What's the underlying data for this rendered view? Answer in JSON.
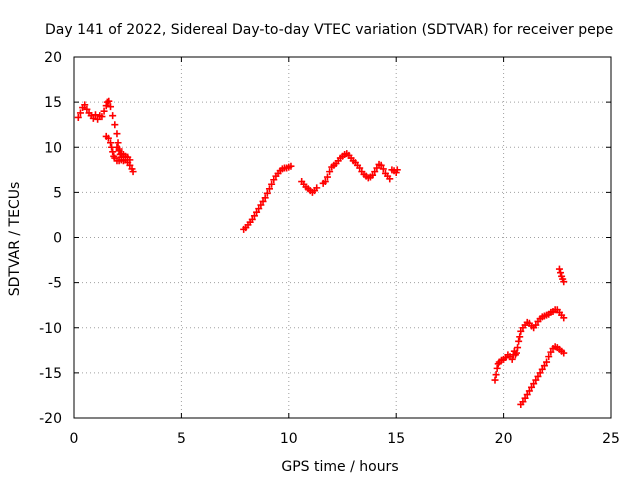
{
  "chart_data": {
    "type": "scatter",
    "title": "Day 141 of 2022, Sidereal Day-to-day VTEC variation (SDTVAR) for receiver pepe",
    "xlabel": "GPS time / hours",
    "ylabel": "SDTVAR / TECUs",
    "xlim": [
      0,
      25
    ],
    "ylim": [
      -20,
      20
    ],
    "xticks": [
      "0",
      "5",
      "10",
      "15",
      "20",
      "25"
    ],
    "yticks": [
      "20",
      "15",
      "10",
      "5",
      "0",
      "-5",
      "-10",
      "-15",
      "-20"
    ],
    "grid": true,
    "legend": "none",
    "marker": "plus",
    "color": "#ff0000",
    "segments": [
      [
        [
          0.2,
          13.3
        ],
        [
          0.3,
          13.8
        ],
        [
          0.4,
          14.4
        ],
        [
          0.5,
          14.7
        ],
        [
          0.6,
          14.2
        ],
        [
          0.7,
          13.8
        ],
        [
          0.8,
          13.5
        ],
        [
          0.9,
          13.2
        ],
        [
          1.0,
          13.6
        ],
        [
          1.1,
          13.1
        ],
        [
          1.2,
          13.5
        ],
        [
          1.3,
          13.4
        ],
        [
          1.4,
          14.0
        ],
        [
          1.5,
          14.6
        ],
        [
          1.55,
          15.0
        ],
        [
          1.62,
          15.1
        ],
        [
          1.7,
          14.5
        ],
        [
          1.8,
          13.5
        ],
        [
          1.9,
          12.5
        ],
        [
          2.0,
          11.5
        ],
        [
          2.05,
          10.5
        ],
        [
          2.1,
          9.8
        ],
        [
          2.15,
          9.2
        ],
        [
          2.2,
          8.9
        ]
      ],
      [
        [
          1.5,
          11.2
        ],
        [
          1.6,
          11.0
        ],
        [
          1.7,
          10.5
        ],
        [
          1.75,
          10.0
        ],
        [
          1.8,
          9.5
        ],
        [
          1.85,
          9.0
        ],
        [
          1.9,
          8.8
        ],
        [
          2.0,
          8.5
        ],
        [
          2.1,
          8.5
        ],
        [
          2.2,
          8.6
        ],
        [
          2.3,
          8.5
        ],
        [
          2.4,
          8.6
        ],
        [
          2.5,
          8.3
        ],
        [
          2.6,
          8.0
        ],
        [
          2.7,
          7.6
        ],
        [
          2.75,
          7.3
        ]
      ],
      [
        [
          2.0,
          10.0
        ],
        [
          2.1,
          9.6
        ],
        [
          2.2,
          9.3
        ],
        [
          2.3,
          9.2
        ],
        [
          2.4,
          9.0
        ],
        [
          2.5,
          8.9
        ],
        [
          2.6,
          8.6
        ]
      ],
      [
        [
          7.9,
          0.9
        ],
        [
          8.0,
          1.1
        ],
        [
          8.1,
          1.4
        ],
        [
          8.2,
          1.7
        ],
        [
          8.3,
          2.0
        ],
        [
          8.4,
          2.4
        ],
        [
          8.5,
          2.8
        ],
        [
          8.6,
          3.2
        ],
        [
          8.7,
          3.6
        ],
        [
          8.8,
          4.0
        ],
        [
          8.9,
          4.4
        ],
        [
          9.0,
          4.9
        ],
        [
          9.1,
          5.4
        ],
        [
          9.2,
          5.9
        ],
        [
          9.3,
          6.4
        ],
        [
          9.4,
          6.8
        ],
        [
          9.5,
          7.1
        ],
        [
          9.6,
          7.4
        ],
        [
          9.7,
          7.6
        ],
        [
          9.8,
          7.7
        ],
        [
          9.9,
          7.7
        ],
        [
          10.0,
          7.8
        ],
        [
          10.1,
          7.9
        ]
      ],
      [
        [
          10.6,
          6.2
        ],
        [
          10.7,
          5.9
        ],
        [
          10.8,
          5.6
        ],
        [
          10.9,
          5.4
        ],
        [
          11.0,
          5.2
        ],
        [
          11.1,
          5.0
        ],
        [
          11.2,
          5.2
        ],
        [
          11.3,
          5.5
        ]
      ],
      [
        [
          11.6,
          6.0
        ],
        [
          11.7,
          6.2
        ],
        [
          11.8,
          6.7
        ],
        [
          11.9,
          7.3
        ],
        [
          12.0,
          7.8
        ],
        [
          12.1,
          8.0
        ],
        [
          12.2,
          8.2
        ],
        [
          12.3,
          8.5
        ],
        [
          12.4,
          8.8
        ],
        [
          12.5,
          9.0
        ],
        [
          12.6,
          9.2
        ],
        [
          12.7,
          9.3
        ],
        [
          12.8,
          9.1
        ],
        [
          12.9,
          8.8
        ],
        [
          13.0,
          8.5
        ],
        [
          13.1,
          8.3
        ],
        [
          13.2,
          8.0
        ],
        [
          13.3,
          7.7
        ],
        [
          13.4,
          7.3
        ],
        [
          13.5,
          7.0
        ],
        [
          13.6,
          6.8
        ],
        [
          13.7,
          6.6
        ],
        [
          13.8,
          6.7
        ],
        [
          13.9,
          6.9
        ],
        [
          14.0,
          7.3
        ],
        [
          14.1,
          7.7
        ],
        [
          14.2,
          8.1
        ],
        [
          14.3,
          8.0
        ],
        [
          14.4,
          7.6
        ],
        [
          14.5,
          7.1
        ],
        [
          14.6,
          6.8
        ],
        [
          14.7,
          6.5
        ]
      ],
      [
        [
          14.8,
          7.5
        ],
        [
          14.9,
          7.4
        ],
        [
          15.0,
          7.2
        ],
        [
          15.05,
          7.5
        ]
      ],
      [
        [
          19.6,
          -15.8
        ],
        [
          19.65,
          -15.2
        ],
        [
          19.7,
          -14.5
        ],
        [
          19.75,
          -14.0
        ],
        [
          19.8,
          -13.8
        ],
        [
          19.9,
          -13.6
        ],
        [
          20.0,
          -13.5
        ],
        [
          20.1,
          -13.3
        ],
        [
          20.2,
          -13.0
        ],
        [
          20.3,
          -13.2
        ],
        [
          20.4,
          -13.5
        ],
        [
          20.45,
          -13.0
        ],
        [
          20.5,
          -12.6
        ],
        [
          20.55,
          -13.0
        ],
        [
          20.6,
          -12.8
        ],
        [
          20.65,
          -12.2
        ],
        [
          20.7,
          -11.5
        ],
        [
          20.75,
          -11.0
        ],
        [
          20.8,
          -10.4
        ],
        [
          20.9,
          -10.0
        ],
        [
          21.0,
          -9.7
        ],
        [
          21.1,
          -9.4
        ],
        [
          21.2,
          -9.5
        ],
        [
          21.3,
          -9.8
        ],
        [
          21.4,
          -10.0
        ],
        [
          21.5,
          -9.7
        ],
        [
          21.6,
          -9.3
        ],
        [
          21.7,
          -9.0
        ],
        [
          21.8,
          -8.8
        ],
        [
          21.9,
          -8.7
        ],
        [
          22.0,
          -8.6
        ],
        [
          22.1,
          -8.5
        ],
        [
          22.2,
          -8.3
        ],
        [
          22.3,
          -8.2
        ],
        [
          22.4,
          -8.0
        ],
        [
          22.5,
          -8.0
        ],
        [
          22.6,
          -8.3
        ],
        [
          22.7,
          -8.6
        ],
        [
          22.8,
          -8.9
        ]
      ],
      [
        [
          20.8,
          -18.5
        ],
        [
          20.9,
          -18.2
        ],
        [
          21.0,
          -17.8
        ],
        [
          21.1,
          -17.4
        ],
        [
          21.2,
          -17.0
        ],
        [
          21.3,
          -16.6
        ],
        [
          21.4,
          -16.2
        ],
        [
          21.5,
          -15.8
        ],
        [
          21.6,
          -15.4
        ],
        [
          21.7,
          -15.0
        ],
        [
          21.8,
          -14.6
        ],
        [
          21.9,
          -14.2
        ],
        [
          22.0,
          -13.8
        ],
        [
          22.1,
          -13.2
        ],
        [
          22.2,
          -12.7
        ],
        [
          22.3,
          -12.3
        ],
        [
          22.4,
          -12.1
        ],
        [
          22.5,
          -12.2
        ],
        [
          22.6,
          -12.4
        ],
        [
          22.7,
          -12.6
        ],
        [
          22.8,
          -12.8
        ]
      ],
      [
        [
          22.6,
          -3.5
        ],
        [
          22.65,
          -3.9
        ],
        [
          22.7,
          -4.3
        ],
        [
          22.75,
          -4.6
        ],
        [
          22.8,
          -4.9
        ]
      ]
    ]
  }
}
